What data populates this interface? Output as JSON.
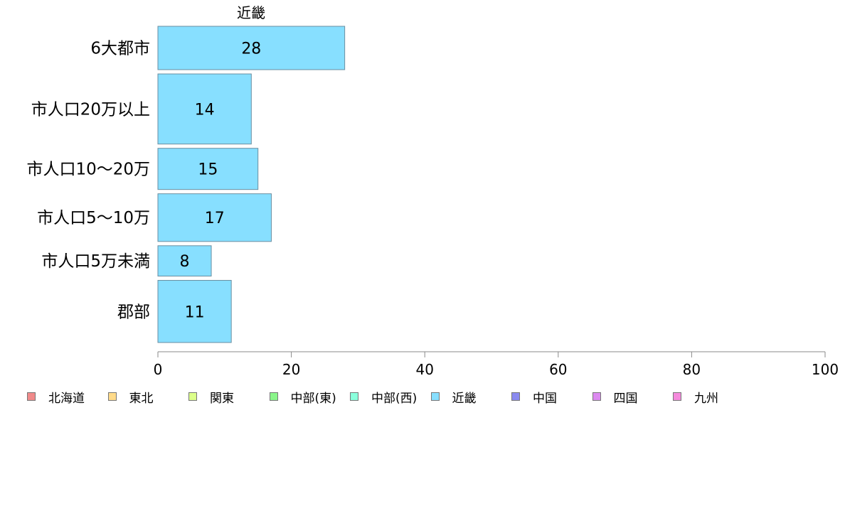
{
  "chart_data": {
    "type": "bar",
    "orientation": "horizontal",
    "title": "近畿",
    "categories": [
      "6大都市",
      "市人口20万以上",
      "市人口10〜20万",
      "市人口5〜10万",
      "市人口5万未満",
      "郡部"
    ],
    "series": [
      {
        "name": "近畿",
        "values": [
          28,
          14,
          15,
          17,
          8,
          11
        ],
        "color": "#87DFFF"
      }
    ],
    "category_weights": [
      60,
      97,
      57,
      66,
      42,
      86
    ],
    "xlim": [
      0,
      100
    ],
    "xticks": [
      0,
      20,
      40,
      60,
      80,
      100
    ],
    "grid": false,
    "legend_placement": "bottom-left"
  },
  "legend": [
    {
      "label": "北海道",
      "color": "#F08A8A"
    },
    {
      "label": "東北",
      "color": "#FFDB8A"
    },
    {
      "label": "関東",
      "color": "#DCFF8A"
    },
    {
      "label": "中部(東)",
      "color": "#8AF58A"
    },
    {
      "label": "中部(西)",
      "color": "#8AFFDC"
    },
    {
      "label": "近畿",
      "color": "#87DFFF"
    },
    {
      "label": "中国",
      "color": "#8A8AF0"
    },
    {
      "label": "四国",
      "color": "#DC8AF0"
    },
    {
      "label": "九州",
      "color": "#F58ADC"
    }
  ]
}
